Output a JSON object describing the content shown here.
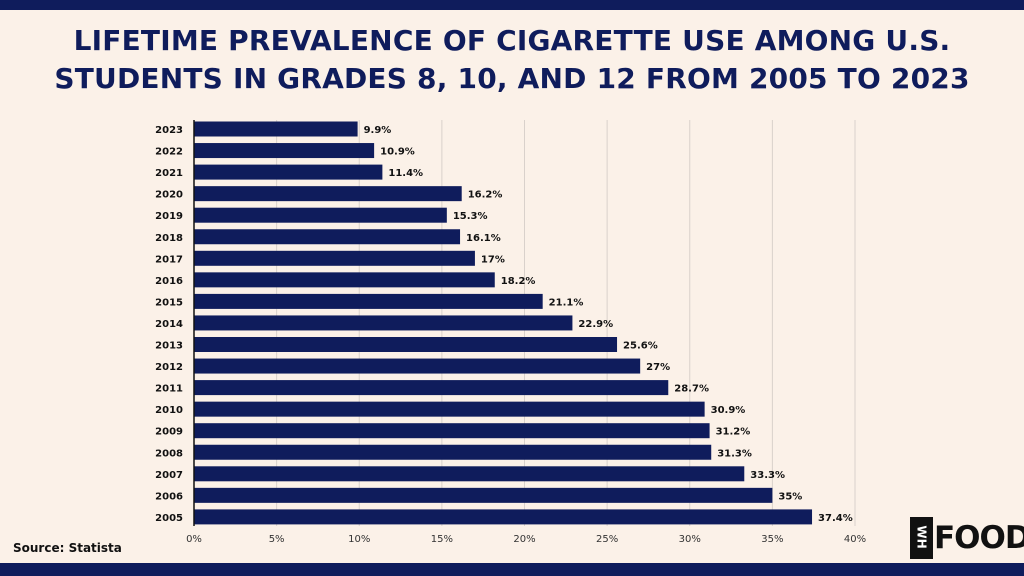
{
  "header": {
    "title_line1": "LIFETIME PREVALENCE OF CIGARETTE USE AMONG U.S.",
    "title_line2": "STUDENTS IN GRADES 8, 10, AND 12 FROM 2005 TO 2023"
  },
  "source": "Source: Statista",
  "logo": {
    "box_text": "WH",
    "text": "FOODS"
  },
  "colors": {
    "bar": "#0f1c5c",
    "background": "#fbf1e8",
    "title": "#0f1c5c"
  },
  "chart_data": {
    "type": "bar",
    "orientation": "horizontal",
    "title": "LIFETIME PREVALENCE OF CIGARETTE USE AMONG U.S. STUDENTS IN GRADES 8, 10, AND 12 FROM 2005 TO 2023",
    "categories": [
      "2023",
      "2022",
      "2021",
      "2020",
      "2019",
      "2018",
      "2017",
      "2016",
      "2015",
      "2014",
      "2013",
      "2012",
      "2011",
      "2010",
      "2009",
      "2008",
      "2007",
      "2006",
      "2005"
    ],
    "values": [
      9.9,
      10.9,
      11.4,
      16.2,
      15.3,
      16.1,
      17,
      18.2,
      21.1,
      22.9,
      25.6,
      27,
      28.7,
      30.9,
      31.2,
      31.3,
      33.3,
      35,
      37.4
    ],
    "value_labels": [
      "9.9%",
      "10.9%",
      "11.4%",
      "16.2%",
      "15.3%",
      "16.1%",
      "17%",
      "18.2%",
      "21.1%",
      "22.9%",
      "25.6%",
      "27%",
      "28.7%",
      "30.9%",
      "31.2%",
      "31.3%",
      "33.3%",
      "35%",
      "37.4%"
    ],
    "x_ticks": [
      0,
      5,
      10,
      15,
      20,
      25,
      30,
      35,
      40
    ],
    "x_tick_labels": [
      "0%",
      "5%",
      "10%",
      "15%",
      "20%",
      "25%",
      "30%",
      "35%",
      "40%"
    ],
    "xlim": [
      0,
      40
    ],
    "xlabel": "",
    "ylabel": "",
    "grid": "vertical"
  }
}
